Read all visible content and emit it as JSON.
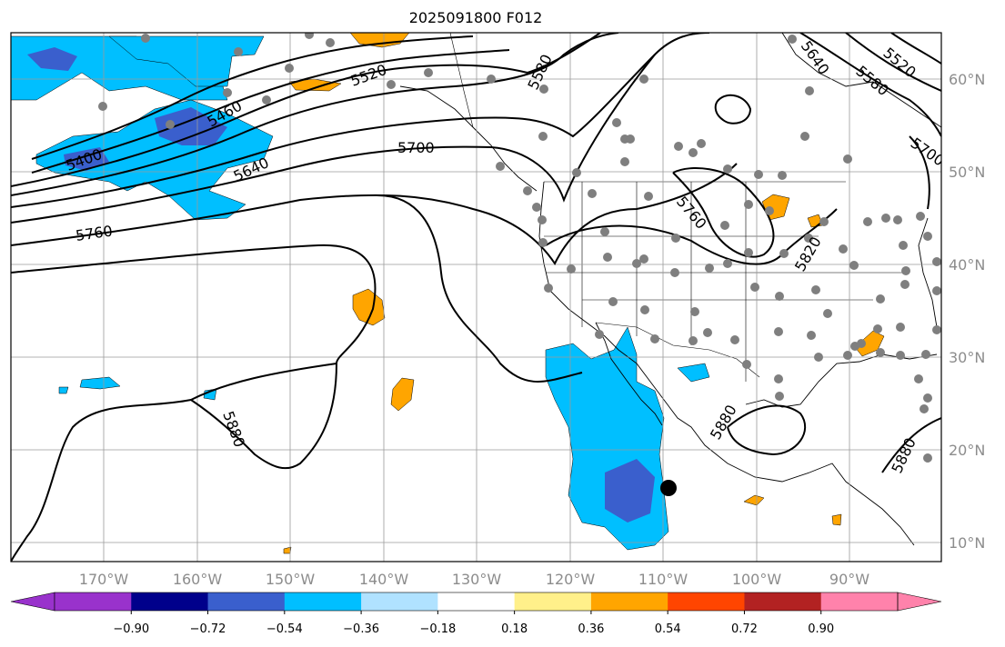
{
  "title": "2025091800 F012",
  "chart_data": {
    "type": "map",
    "title": "2025091800 F012",
    "lon_ticks": [
      "170°W",
      "160°W",
      "150°W",
      "140°W",
      "130°W",
      "120°W",
      "110°W",
      "100°W",
      "90°W"
    ],
    "lat_ticks": [
      "60°N",
      "50°N",
      "40°N",
      "30°N",
      "20°N",
      "10°N"
    ],
    "contour_labels": [
      "5400",
      "5460",
      "5520",
      "5580",
      "5640",
      "5640",
      "5700",
      "5700",
      "5760",
      "5760",
      "5820",
      "5880",
      "5880",
      "5880",
      "5520",
      "5580"
    ],
    "colorbar": {
      "ticks": [
        "−0.90",
        "−0.72",
        "−0.54",
        "−0.36",
        "−0.18",
        "0.18",
        "0.36",
        "0.54",
        "0.72",
        "0.90"
      ],
      "colors": [
        "#9932cc",
        "#00008b",
        "#3a5fcd",
        "#00bfff",
        "#b0e2ff",
        "#ffffff",
        "#fff08a",
        "#ffa500",
        "#ff4500",
        "#b22222",
        "#ff82ab",
        "#ff82ab"
      ]
    },
    "grid": true
  }
}
